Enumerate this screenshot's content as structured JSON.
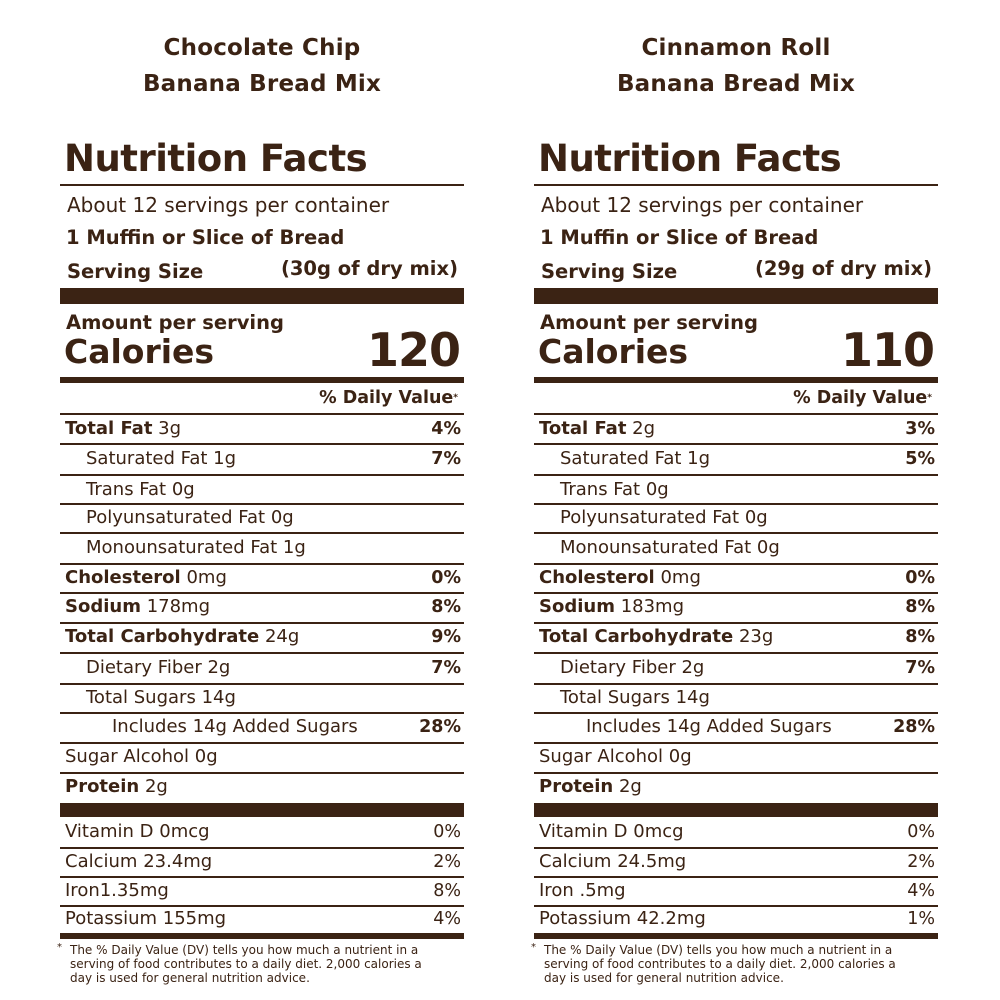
{
  "panels": [
    {
      "heading_line1": "Chocolate Chip",
      "heading_line2": "Banana Bread Mix",
      "facts_title": "Nutrition Facts",
      "servings_per_container": "About 12 servings per container",
      "serving_description": "1 Muffin or Slice of Bread",
      "serving_size_label": "Serving Size",
      "serving_size_value": "(30g of dry mix)",
      "amount_per_serving": "Amount per serving",
      "calories_label": "Calories",
      "calories_value": "120",
      "daily_value_header": "% Daily Value",
      "daily_value_marker": "*",
      "nutrients": [
        {
          "name": "Total Fat",
          "amount": "3g",
          "dv": "4%"
        },
        {
          "name": "Saturated Fat",
          "amount": "1g",
          "dv": "7%"
        },
        {
          "name": "Trans Fat",
          "amount": "0g",
          "dv": ""
        },
        {
          "name": "Polyunsaturated Fat",
          "amount": "0g",
          "dv": ""
        },
        {
          "name": "Monounsaturated Fat",
          "amount": "1g",
          "dv": ""
        },
        {
          "name": "Cholesterol",
          "amount": "0mg",
          "dv": "0%"
        },
        {
          "name": "Sodium",
          "amount": "178mg",
          "dv": "8%"
        },
        {
          "name": "Total Carbohydrate",
          "amount": "24g",
          "dv": "9%"
        },
        {
          "name": "Dietary Fiber",
          "amount": "2g",
          "dv": "7%"
        },
        {
          "name": "Total Sugars",
          "amount": "14g",
          "dv": ""
        },
        {
          "name": "Includes 14g Added Sugars",
          "amount": "",
          "dv": "28%"
        },
        {
          "name": "Sugar Alcohol",
          "amount": "0g",
          "dv": ""
        },
        {
          "name": "Protein",
          "amount": "2g",
          "dv": ""
        }
      ],
      "vitamins": [
        {
          "name": "Vitamin D",
          "amount": "0mcg",
          "dv": "0%"
        },
        {
          "name": "Calcium",
          "amount": "23.4mg",
          "dv": "2%"
        },
        {
          "name": "Iron",
          "amount": "1.35mg",
          "dv": "8%"
        },
        {
          "name": "Potassium",
          "amount": "155mg",
          "dv": "4%"
        }
      ],
      "footnote_marker": "*",
      "footnote": "The % Daily Value (DV) tells you how much a nutrient in a serving of food contributes to a daily diet. 2,000 calories a day is used for general nutrition advice."
    },
    {
      "heading_line1": "Cinnamon Roll",
      "heading_line2": "Banana Bread Mix",
      "facts_title": "Nutrition Facts",
      "servings_per_container": "About 12 servings per container",
      "serving_description": "1 Muffin or Slice of Bread",
      "serving_size_label": "Serving Size",
      "serving_size_value": "(29g of dry mix)",
      "amount_per_serving": "Amount per serving",
      "calories_label": "Calories",
      "calories_value": "110",
      "daily_value_header": "% Daily Value",
      "daily_value_marker": "*",
      "nutrients": [
        {
          "name": "Total Fat",
          "amount": "2g",
          "dv": "3%"
        },
        {
          "name": "Saturated Fat",
          "amount": "1g",
          "dv": "5%"
        },
        {
          "name": "Trans Fat",
          "amount": "0g",
          "dv": ""
        },
        {
          "name": "Polyunsaturated Fat",
          "amount": "0g",
          "dv": ""
        },
        {
          "name": "Monounsaturated Fat",
          "amount": "0g",
          "dv": ""
        },
        {
          "name": "Cholesterol",
          "amount": "0mg",
          "dv": "0%"
        },
        {
          "name": "Sodium",
          "amount": "183mg",
          "dv": "8%"
        },
        {
          "name": "Total Carbohydrate",
          "amount": "23g",
          "dv": "8%"
        },
        {
          "name": "Dietary Fiber",
          "amount": "2g",
          "dv": "7%"
        },
        {
          "name": "Total Sugars",
          "amount": "14g",
          "dv": ""
        },
        {
          "name": "Includes 14g Added Sugars",
          "amount": "",
          "dv": "28%"
        },
        {
          "name": "Sugar Alcohol",
          "amount": "0g",
          "dv": ""
        },
        {
          "name": "Protein",
          "amount": "2g",
          "dv": ""
        }
      ],
      "vitamins": [
        {
          "name": "Vitamin D",
          "amount": "0mcg",
          "dv": "0%"
        },
        {
          "name": "Calcium",
          "amount": "24.5mg",
          "dv": "2%"
        },
        {
          "name": "Iron",
          "amount": ".5mg",
          "dv": "4%"
        },
        {
          "name": "Potassium",
          "amount": "42.2mg",
          "dv": "1%"
        }
      ],
      "footnote_marker": "*",
      "footnote": "The % Daily Value (DV) tells you how much a nutrient in a serving of food contributes to a daily diet. 2,000 calories a day is used for general nutrition advice."
    }
  ],
  "colors": {
    "ink": "#3b2314",
    "background": "#ffffff"
  }
}
